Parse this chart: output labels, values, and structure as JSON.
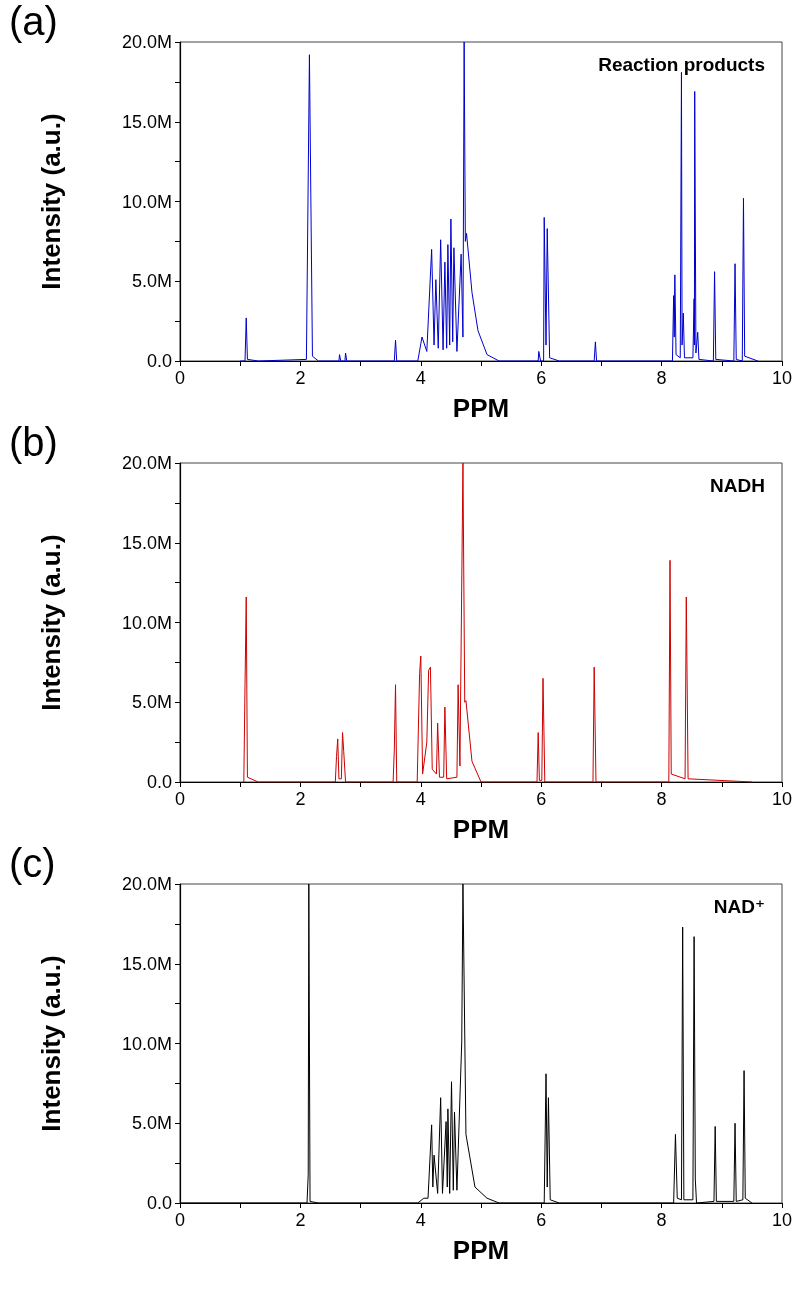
{
  "chart_data": [
    {
      "type": "line",
      "title": "(a)",
      "annotations": [
        "Reaction products"
      ],
      "xlabel": "PPM",
      "ylabel": "Intensity (a.u.)",
      "marker": "none",
      "xlim": [
        0,
        10
      ],
      "xticks": [
        0,
        {
          "value": 1,
          "label": null
        },
        2,
        {
          "value": 3,
          "label": null
        },
        4,
        {
          "value": 5,
          "label": null
        },
        6,
        {
          "value": 7,
          "label": null
        },
        8,
        {
          "value": 9,
          "label": null
        },
        10
      ],
      "ylim": [
        0,
        20
      ],
      "yticks": [
        {
          "value": 0,
          "label": "0.0"
        },
        {
          "value": 2.5,
          "label": null
        },
        {
          "value": 5,
          "label": "5.0M"
        },
        {
          "value": 7.5,
          "label": null
        },
        {
          "value": 10,
          "label": "10.0M"
        },
        {
          "value": 12.5,
          "label": null
        },
        {
          "value": 15,
          "label": "15.0M"
        },
        {
          "value": 17.5,
          "label": null
        },
        {
          "value": 20,
          "label": "20.0M"
        }
      ],
      "x": [
        1.0,
        1.08,
        1.1,
        1.12,
        1.3,
        2.1,
        2.15,
        2.2,
        2.3,
        2.64,
        2.65,
        2.67,
        2.74,
        2.75,
        2.77,
        3.56,
        3.58,
        3.6,
        3.95,
        4.02,
        4.1,
        4.18,
        4.22,
        4.25,
        4.29,
        4.33,
        4.37,
        4.4,
        4.43,
        4.45,
        4.48,
        4.5,
        4.53,
        4.55,
        4.6,
        4.67,
        4.7,
        4.72,
        4.74,
        4.76,
        4.85,
        4.95,
        5.1,
        5.3,
        5.95,
        5.96,
        5.99,
        6.04,
        6.05,
        6.08,
        6.1,
        6.14,
        6.3,
        6.88,
        6.9,
        6.92,
        8.18,
        8.2,
        8.21,
        8.22,
        8.24,
        8.31,
        8.33,
        8.34,
        8.36,
        8.38,
        8.52,
        8.54,
        8.545,
        8.55,
        8.57,
        8.6,
        8.62,
        8.86,
        8.88,
        8.9,
        9.2,
        9.22,
        9.24,
        9.34,
        9.36,
        9.38,
        9.6
      ],
      "series": [
        {
          "color": "#0000cc",
          "values": [
            0,
            0,
            2.7,
            0.1,
            0,
            0.1,
            19.2,
            0.3,
            0,
            0,
            0.4,
            0,
            0,
            0.5,
            0,
            0,
            1.3,
            0,
            0,
            1.5,
            0.6,
            7.0,
            1.0,
            5.1,
            0.8,
            7.6,
            0.7,
            6.2,
            0.8,
            7.3,
            1.0,
            8.9,
            1.2,
            7.1,
            0.6,
            6.7,
            1.5,
            20,
            7.5,
            8.0,
            4.3,
            1.9,
            0.4,
            0,
            0,
            0.6,
            0,
            0,
            9.0,
            1,
            8.3,
            0.2,
            0,
            0,
            1.2,
            0,
            0,
            4.1,
            1.5,
            5.4,
            0.4,
            0.2,
            18.1,
            1,
            3.0,
            0.2,
            0.2,
            3.9,
            1,
            16.9,
            0.5,
            1.8,
            0.1,
            0,
            5.6,
            0.1,
            0,
            6.1,
            0.1,
            0,
            10.2,
            0.3,
            0
          ]
        }
      ]
    },
    {
      "type": "line",
      "title": "(b)",
      "annotations": [
        "NADH"
      ],
      "xlabel": "PPM",
      "ylabel": "Intensity (a.u.)",
      "marker": "none",
      "xlim": [
        0,
        10
      ],
      "xticks": [
        0,
        {
          "value": 1,
          "label": null
        },
        2,
        {
          "value": 3,
          "label": null
        },
        4,
        {
          "value": 5,
          "label": null
        },
        6,
        {
          "value": 7,
          "label": null
        },
        8,
        {
          "value": 9,
          "label": null
        },
        10
      ],
      "ylim": [
        0,
        20
      ],
      "yticks": [
        {
          "value": 0,
          "label": "0.0"
        },
        {
          "value": 2.5,
          "label": null
        },
        {
          "value": 5,
          "label": "5.0M"
        },
        {
          "value": 7.5,
          "label": null
        },
        {
          "value": 10,
          "label": "10.0M"
        },
        {
          "value": 12.5,
          "label": null
        },
        {
          "value": 15,
          "label": "15.0M"
        },
        {
          "value": 17.5,
          "label": null
        },
        {
          "value": 20,
          "label": "20.0M"
        }
      ],
      "x": [
        1.06,
        1.08,
        1.1,
        1.12,
        1.3,
        2.58,
        2.6,
        2.62,
        2.64,
        2.68,
        2.7,
        2.72,
        2.75,
        3.54,
        3.56,
        3.58,
        3.6,
        3.94,
        3.98,
        4.0,
        4.03,
        4.1,
        4.13,
        4.16,
        4.19,
        4.26,
        4.28,
        4.31,
        4.38,
        4.4,
        4.43,
        4.6,
        4.62,
        4.65,
        4.7,
        4.73,
        4.75,
        4.85,
        5.0,
        5.93,
        5.95,
        5.97,
        6.01,
        6.03,
        6.06,
        6.86,
        6.88,
        6.91,
        8.12,
        8.14,
        8.16,
        8.39,
        8.41,
        8.44,
        9.5
      ],
      "series": [
        {
          "color": "#cc0000",
          "values": [
            0,
            6.1,
            11.6,
            0.3,
            0,
            0,
            1.6,
            2.7,
            0.2,
            0.2,
            3.1,
            1.9,
            0,
            0,
            2.0,
            6.1,
            0,
            0,
            6.8,
            7.9,
            0.5,
            2.5,
            7.0,
            7.2,
            0.8,
            0.5,
            3.7,
            0.3,
            0.3,
            4.7,
            0.2,
            0.3,
            6.1,
            1.0,
            20,
            5.0,
            5.1,
            1.3,
            0,
            0,
            3.1,
            0.1,
            0.1,
            6.5,
            0,
            0,
            7.2,
            0,
            0,
            13.9,
            0.5,
            0.2,
            11.6,
            0.2,
            0
          ]
        }
      ]
    },
    {
      "type": "line",
      "title": "(c)",
      "annotations": [
        "NAD⁺"
      ],
      "xlabel": "PPM",
      "ylabel": "Intensity (a.u.)",
      "marker": "none",
      "xlim": [
        0,
        10
      ],
      "xticks": [
        0,
        {
          "value": 1,
          "label": null
        },
        2,
        {
          "value": 3,
          "label": null
        },
        4,
        {
          "value": 5,
          "label": null
        },
        6,
        {
          "value": 7,
          "label": null
        },
        8,
        {
          "value": 9,
          "label": null
        },
        10
      ],
      "ylim": [
        0,
        20
      ],
      "yticks": [
        {
          "value": 0,
          "label": "0.0"
        },
        {
          "value": 2.5,
          "label": null
        },
        {
          "value": 5,
          "label": "5.0M"
        },
        {
          "value": 7.5,
          "label": null
        },
        {
          "value": 10,
          "label": "10.0M"
        },
        {
          "value": 12.5,
          "label": null
        },
        {
          "value": 15,
          "label": "15.0M"
        },
        {
          "value": 17.5,
          "label": null
        },
        {
          "value": 20,
          "label": "20.0M"
        }
      ],
      "x": [
        0,
        2.11,
        2.13,
        2.14,
        2.16,
        2.3,
        3.95,
        4.05,
        4.12,
        4.18,
        4.2,
        4.22,
        4.28,
        4.33,
        4.36,
        4.42,
        4.44,
        4.45,
        4.48,
        4.51,
        4.54,
        4.56,
        4.6,
        4.68,
        4.7,
        4.75,
        4.9,
        5.1,
        5.3,
        6.05,
        6.08,
        6.1,
        6.12,
        6.15,
        6.3,
        8.2,
        8.23,
        8.26,
        8.33,
        8.35,
        8.37,
        8.52,
        8.54,
        8.56,
        8.58,
        8.87,
        8.89,
        8.91,
        9.2,
        9.22,
        9.24,
        9.35,
        9.37,
        9.39,
        9.5
      ],
      "series": [
        {
          "color": "#000000",
          "values": [
            0,
            0,
            1.8,
            20,
            0.1,
            0,
            0,
            0.3,
            0.3,
            4.9,
            1.0,
            3.0,
            0.6,
            6.6,
            0.6,
            5.1,
            1.0,
            5.9,
            0.6,
            7.6,
            0.8,
            5.7,
            0.8,
            10.1,
            20,
            4.3,
            1.0,
            0.3,
            0,
            0,
            8.1,
            1,
            6.6,
            0.2,
            0,
            0,
            4.3,
            0.3,
            0.2,
            17.3,
            0.2,
            0.2,
            16.7,
            1.5,
            0,
            0.1,
            4.8,
            0.1,
            0.1,
            5.0,
            0.1,
            0.2,
            8.3,
            0.3,
            0
          ]
        }
      ]
    }
  ]
}
